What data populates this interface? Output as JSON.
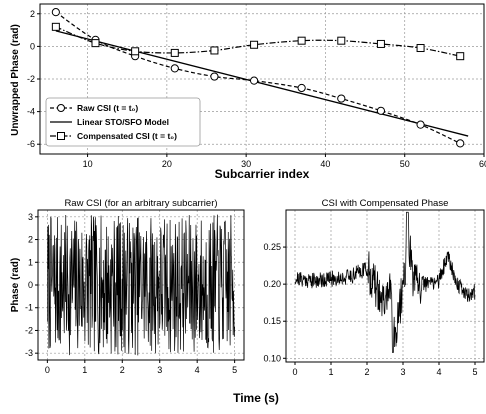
{
  "chart_data": [
    {
      "type": "line",
      "xlabel": "Subcarrier index",
      "ylabel": "Unwrapped Phase (rad)",
      "xlim": [
        4,
        60
      ],
      "ylim": [
        -6.6,
        2.6
      ],
      "xticks": [
        10,
        20,
        30,
        40,
        50,
        60
      ],
      "yticks": [
        -6,
        -4,
        -2,
        0,
        2
      ],
      "grid": true,
      "legend_position": "bottom-left",
      "series": [
        {
          "name": "Raw CSI (t = t₀)",
          "style": "dashed",
          "marker": "circle",
          "x": [
            6,
            11,
            16,
            21,
            26,
            31,
            37,
            42,
            47,
            52,
            57
          ],
          "y": [
            2.1,
            0.4,
            -0.6,
            -1.35,
            -1.85,
            -2.1,
            -2.55,
            -3.2,
            -3.95,
            -4.8,
            -5.95
          ]
        },
        {
          "name": "Linear STO/SFO Model",
          "style": "solid",
          "marker": "none",
          "x": [
            6,
            58
          ],
          "y": [
            0.95,
            -5.5
          ]
        },
        {
          "name": "Compensated CSI (t = t₀)",
          "style": "dashdot",
          "marker": "square",
          "x": [
            6,
            11,
            16,
            21,
            26,
            31,
            37,
            42,
            47,
            52,
            57
          ],
          "y": [
            1.2,
            0.2,
            -0.3,
            -0.4,
            -0.25,
            0.1,
            0.35,
            0.35,
            0.15,
            -0.1,
            -0.6
          ]
        }
      ]
    },
    {
      "type": "line",
      "title": "Raw CSI (for an arbitrary subcarrier)",
      "ylabel": "Phase (rad)",
      "xlim": [
        -0.25,
        5.25
      ],
      "ylim": [
        -3.3,
        3.3
      ],
      "xticks": [
        0,
        1,
        2,
        3,
        4,
        5
      ],
      "yticks": [
        -3,
        -2,
        -1,
        0,
        1,
        2,
        3
      ],
      "grid": true,
      "samples": 500,
      "signal": "noise wrapped to [-π, π], t = 0 to 5"
    },
    {
      "type": "line",
      "title": "CSI with Compensated Phase",
      "xlim": [
        -0.25,
        5.25
      ],
      "ylim": [
        0.095,
        0.3
      ],
      "xticks": [
        0,
        1,
        2,
        3,
        4,
        5
      ],
      "yticks": [
        0.1,
        0.15,
        0.2,
        0.25
      ],
      "grid": true,
      "samples": 500,
      "anchors_t": [
        0,
        0.5,
        1,
        1.5,
        2,
        2.3,
        2.5,
        2.6,
        2.8,
        3,
        3.15,
        3.3,
        3.6,
        4,
        4.25,
        4.5,
        4.8,
        5
      ],
      "anchors_y": [
        0.208,
        0.205,
        0.207,
        0.21,
        0.222,
        0.19,
        0.17,
        0.2,
        0.13,
        0.2,
        0.26,
        0.2,
        0.2,
        0.205,
        0.24,
        0.2,
        0.185,
        0.19
      ]
    }
  ],
  "shared_xlabel": "Time (s)"
}
